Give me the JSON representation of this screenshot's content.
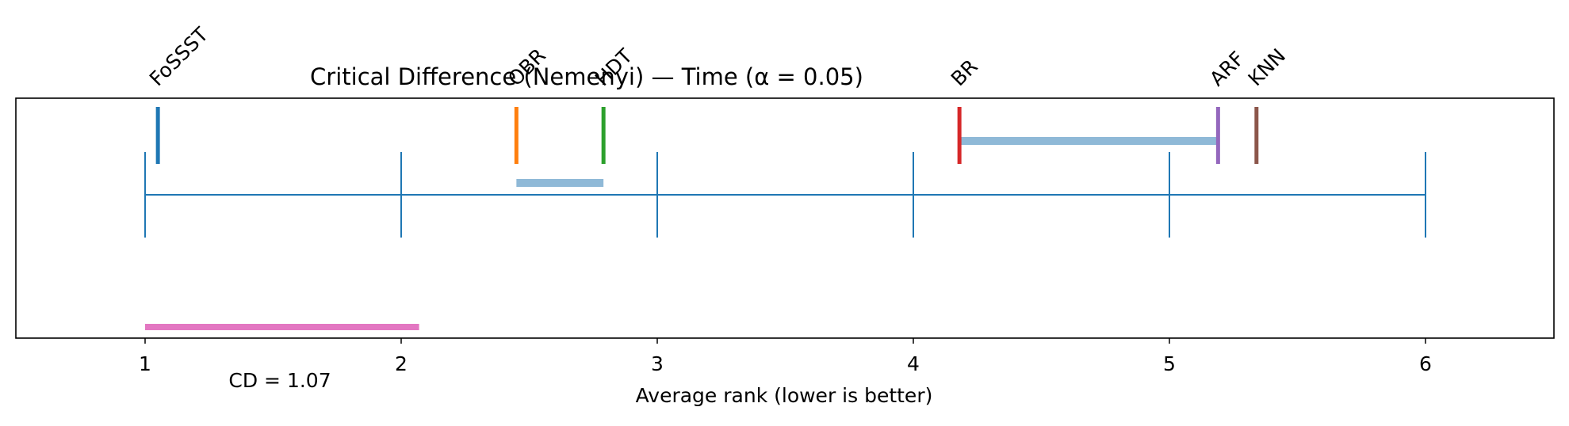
{
  "chart_data": {
    "type": "critical-difference",
    "title": "Critical Difference (Nemenyi) — Time (α = 0.05)",
    "xlabel": "Average rank (lower is better)",
    "xlim": [
      0.5,
      6.5
    ],
    "ticks": [
      1,
      2,
      3,
      4,
      5,
      6
    ],
    "tick_labels": [
      "1",
      "2",
      "3",
      "4",
      "5",
      "6"
    ],
    "methods": [
      {
        "name": "FoSSST",
        "rank": 1.05,
        "color": "#1f77b4"
      },
      {
        "name": "OBR",
        "rank": 2.45,
        "color": "#ff7f0e"
      },
      {
        "name": "HDT",
        "rank": 2.79,
        "color": "#2ca02c"
      },
      {
        "name": "BR",
        "rank": 4.18,
        "color": "#d62728"
      },
      {
        "name": "ARF",
        "rank": 5.19,
        "color": "#9467bd"
      },
      {
        "name": "KNN",
        "rank": 5.34,
        "color": "#8c564b"
      }
    ],
    "cliques": [
      {
        "from": 2.45,
        "to": 2.79
      },
      {
        "from": 4.18,
        "to": 5.19
      }
    ],
    "cd": {
      "value": 1.07,
      "start": 1.0,
      "label": "CD = 1.07",
      "color": "#e377c2"
    },
    "axis_color": "#1f77b4",
    "clique_color": "#8fb9d7",
    "grid": false
  }
}
